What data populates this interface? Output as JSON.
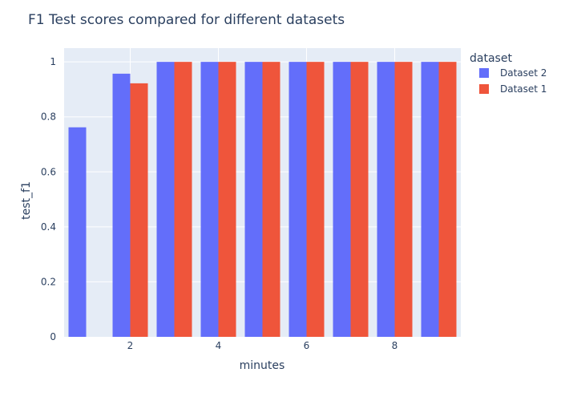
{
  "chart_data": {
    "type": "bar",
    "title": "F1 Test scores compared for different datasets",
    "xlabel": "minutes",
    "ylabel": "test_f1",
    "xlim": [
      0.5,
      9.5
    ],
    "ylim": [
      0,
      1.05
    ],
    "xticks": [
      2,
      4,
      6,
      8
    ],
    "yticks": [
      0,
      0.2,
      0.4,
      0.6,
      0.8,
      1
    ],
    "x": [
      1,
      2,
      3,
      4,
      5,
      6,
      7,
      8,
      9
    ],
    "legend": {
      "title": "dataset",
      "placement": "top-right"
    },
    "grid": true,
    "series": [
      {
        "name": "Dataset 2",
        "color": "#636efa",
        "values": [
          0.762,
          0.957,
          1,
          1,
          1,
          1,
          1,
          1,
          1
        ]
      },
      {
        "name": "Dataset 1",
        "color": "#ef553b",
        "values": [
          null,
          0.922,
          1,
          1,
          1,
          1,
          1,
          1,
          1
        ]
      }
    ],
    "colors": {
      "plot_bg": "#e5ecf6",
      "grid": "#ffffff",
      "text": "#2a3f5f"
    }
  }
}
